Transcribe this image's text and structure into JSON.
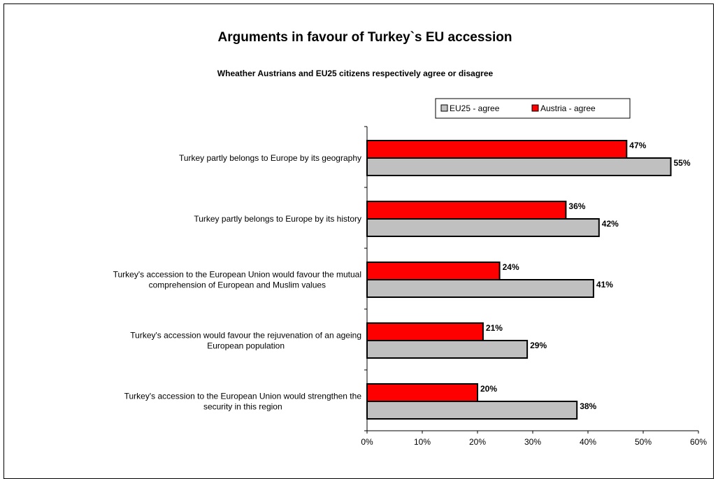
{
  "chart_data": {
    "type": "bar",
    "orientation": "horizontal",
    "title": "Arguments in favour of Turkey`s EU accession",
    "subtitle": "Wheather Austrians and EU25 citizens respectively agree or disagree",
    "categories": [
      [
        "Turkey partly belongs to Europe by its geography"
      ],
      [
        "Turkey partly belongs to Europe by its history"
      ],
      [
        "Turkey's accession to the European Union would favour the mutual",
        "comprehension of European and Muslim values"
      ],
      [
        "Turkey's accession would favour the rejuvenation of an ageing",
        "European population"
      ],
      [
        "Turkey's accession to the European Union would strengthen the",
        "security in this region"
      ]
    ],
    "series": [
      {
        "name": "Austria - agree",
        "values": [
          47,
          36,
          24,
          21,
          20
        ],
        "labels": [
          "47%",
          "36%",
          "24%",
          "21%",
          "20%"
        ],
        "color": "#ff0000"
      },
      {
        "name": "EU25 - agree",
        "values": [
          55,
          42,
          41,
          29,
          38
        ],
        "labels": [
          "55%",
          "42%",
          "41%",
          "29%",
          "38%"
        ],
        "color": "#c0c0c0"
      }
    ],
    "legend": {
      "placement": "top-right",
      "order": [
        "EU25 - agree",
        "Austria - agree"
      ]
    },
    "xlim": [
      0,
      60
    ],
    "xticks": [
      "0%",
      "10%",
      "20%",
      "30%",
      "40%",
      "50%",
      "60%"
    ],
    "grid": false
  }
}
